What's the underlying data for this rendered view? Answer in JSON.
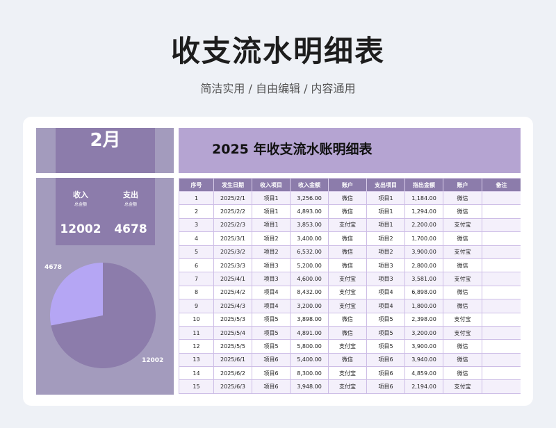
{
  "header": {
    "title": "收支流水明细表",
    "subtitle": "简洁实用 / 自由编辑 / 内容通用"
  },
  "month": {
    "label": "2月"
  },
  "table_title": "2025 年收支流水账明细表",
  "stats": {
    "income_label": "收入",
    "income_sub": "总金额",
    "income_value": "12002",
    "expense_label": "支出",
    "expense_sub": "总金额",
    "expense_value": "4678"
  },
  "pie": {
    "slices": [
      {
        "label": "12002",
        "value": 12002,
        "color": "#8c7cab"
      },
      {
        "label": "4678",
        "value": 4678,
        "color": "#b5a6f4"
      }
    ]
  },
  "table": {
    "columns": [
      "序号",
      "发生日期",
      "收入项目",
      "收入金额",
      "账户",
      "支出项目",
      "指出金额",
      "账户",
      "备注"
    ],
    "rows": [
      [
        "1",
        "2025/2/1",
        "项目1",
        "3,256.00",
        "微信",
        "项目1",
        "1,184.00",
        "微信",
        ""
      ],
      [
        "2",
        "2025/2/2",
        "项目1",
        "4,893.00",
        "微信",
        "项目1",
        "1,294.00",
        "微信",
        ""
      ],
      [
        "3",
        "2025/2/3",
        "项目1",
        "3,853.00",
        "支付宝",
        "项目1",
        "2,200.00",
        "支付宝",
        ""
      ],
      [
        "4",
        "2025/3/1",
        "项目2",
        "3,400.00",
        "微信",
        "项目2",
        "1,700.00",
        "微信",
        ""
      ],
      [
        "5",
        "2025/3/2",
        "项目2",
        "6,532.00",
        "微信",
        "项目2",
        "3,900.00",
        "支付宝",
        ""
      ],
      [
        "6",
        "2025/3/3",
        "项目3",
        "5,200.00",
        "微信",
        "项目3",
        "2,800.00",
        "微信",
        ""
      ],
      [
        "7",
        "2025/4/1",
        "项目3",
        "4,600.00",
        "支付宝",
        "项目3",
        "3,581.00",
        "支付宝",
        ""
      ],
      [
        "8",
        "2025/4/2",
        "项目4",
        "8,432.00",
        "支付宝",
        "项目4",
        "6,898.00",
        "微信",
        ""
      ],
      [
        "9",
        "2025/4/3",
        "项目4",
        "3,200.00",
        "支付宝",
        "项目4",
        "1,800.00",
        "微信",
        ""
      ],
      [
        "10",
        "2025/5/3",
        "项目5",
        "3,898.00",
        "微信",
        "项目5",
        "2,398.00",
        "支付宝",
        ""
      ],
      [
        "11",
        "2025/5/4",
        "项目5",
        "4,891.00",
        "微信",
        "项目5",
        "3,200.00",
        "支付宝",
        ""
      ],
      [
        "12",
        "2025/5/5",
        "项目5",
        "5,800.00",
        "支付宝",
        "项目5",
        "3,900.00",
        "微信",
        ""
      ],
      [
        "13",
        "2025/6/1",
        "项目6",
        "5,400.00",
        "微信",
        "项目6",
        "3,940.00",
        "微信",
        ""
      ],
      [
        "14",
        "2025/6/2",
        "项目6",
        "8,300.00",
        "支付宝",
        "项目6",
        "4,859.00",
        "微信",
        ""
      ],
      [
        "15",
        "2025/6/3",
        "项目6",
        "3,948.00",
        "支付宝",
        "项目6",
        "2,194.00",
        "支付宝",
        ""
      ]
    ]
  },
  "colors": {
    "accent": "#8c7cab",
    "accent_light": "#b5a4d2",
    "panel": "#a39bbd",
    "row_alt": "#f4f0fb"
  }
}
